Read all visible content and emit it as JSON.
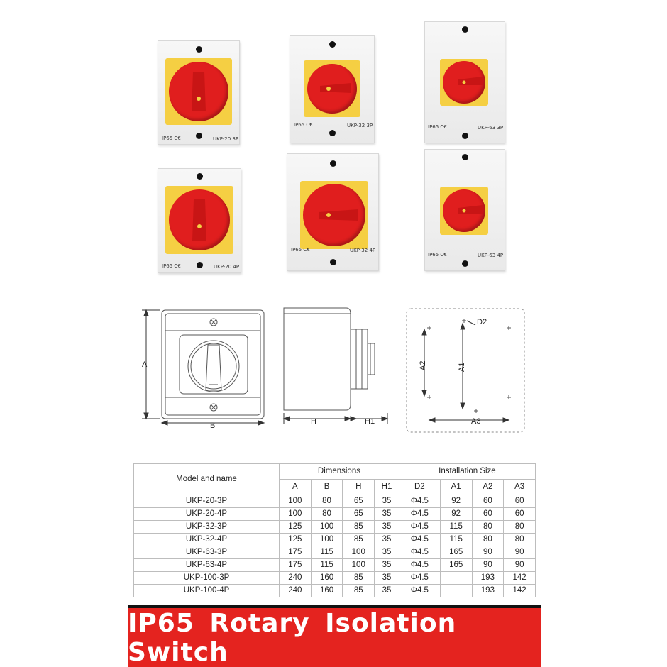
{
  "products": [
    {
      "marks": "IP65 C€",
      "model": "UKP-20  3P"
    },
    {
      "marks": "IP65 C€",
      "model": "UKP-32  3P"
    },
    {
      "marks": "IP65 C€",
      "model": "UKP-63  3P"
    },
    {
      "marks": "IP65 C€",
      "model": "UKP-20  4P"
    },
    {
      "marks": "IP65 C€",
      "model": "UKP-32  4P"
    },
    {
      "marks": "IP65 C€",
      "model": "UKP-63  4P"
    }
  ],
  "drawing": {
    "labels": {
      "A": "A",
      "B": "B",
      "H": "H",
      "H1": "H1",
      "D2": "D2",
      "A1": "A1",
      "A2": "A2",
      "A3": "A3"
    }
  },
  "table": {
    "header": {
      "model_and_name": "Model and name",
      "dimensions": "Dimensions",
      "installation_size": "Installation Size",
      "dimension_cols": [
        "A",
        "B",
        "H",
        "H1"
      ],
      "installation_cols": [
        "D2",
        "A1",
        "A2",
        "A3"
      ]
    },
    "rows": [
      {
        "model": "UKP-20-3P",
        "A": "100",
        "B": "80",
        "H": "65",
        "H1": "35",
        "D2": "Φ4.5",
        "A1": "92",
        "A2": "60",
        "A3": "60"
      },
      {
        "model": "UKP-20-4P",
        "A": "100",
        "B": "80",
        "H": "65",
        "H1": "35",
        "D2": "Φ4.5",
        "A1": "92",
        "A2": "60",
        "A3": "60"
      },
      {
        "model": "UKP-32-3P",
        "A": "125",
        "B": "100",
        "H": "85",
        "H1": "35",
        "D2": "Φ4.5",
        "A1": "115",
        "A2": "80",
        "A3": "80"
      },
      {
        "model": "UKP-32-4P",
        "A": "125",
        "B": "100",
        "H": "85",
        "H1": "35",
        "D2": "Φ4.5",
        "A1": "115",
        "A2": "80",
        "A3": "80"
      },
      {
        "model": "UKP-63-3P",
        "A": "175",
        "B": "115",
        "H": "100",
        "H1": "35",
        "D2": "Φ4.5",
        "A1": "165",
        "A2": "90",
        "A3": "90"
      },
      {
        "model": "UKP-63-4P",
        "A": "175",
        "B": "115",
        "H": "100",
        "H1": "35",
        "D2": "Φ4.5",
        "A1": "165",
        "A2": "90",
        "A3": "90"
      },
      {
        "model": "UKP-100-3P",
        "A": "240",
        "B": "160",
        "H": "85",
        "H1": "35",
        "D2": "Φ4.5",
        "A1": "",
        "A2": "193",
        "A3": "142"
      },
      {
        "model": "UKP-100-4P",
        "A": "240",
        "B": "160",
        "H": "85",
        "H1": "35",
        "D2": "Φ4.5",
        "A1": "",
        "A2": "193",
        "A3": "142"
      }
    ]
  },
  "banner": {
    "title": "IP65 Rotary Isolation Switch"
  }
}
